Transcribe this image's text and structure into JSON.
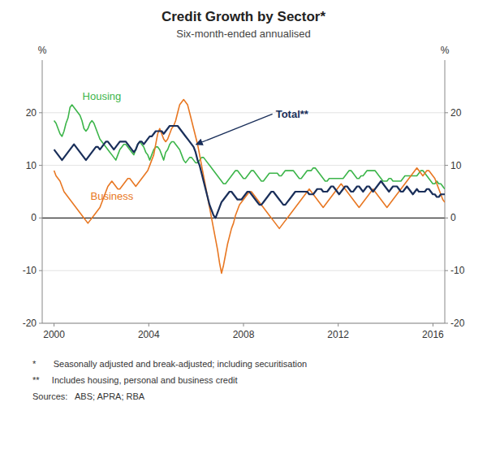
{
  "chart_data": {
    "type": "line",
    "title": "Credit Growth by Sector*",
    "subtitle": "Six-month-ended annualised",
    "ylabel": "%",
    "y2label": "%",
    "xlim": [
      1999.5,
      2016.5
    ],
    "xticks": [
      2000,
      2004,
      2008,
      2012,
      2016
    ],
    "ylim": [
      -20,
      30
    ],
    "yticks": [
      -20,
      -10,
      0,
      10,
      20
    ],
    "y2lim": [
      -20,
      30
    ],
    "y2ticks": [
      -20,
      -10,
      0,
      10,
      20
    ],
    "grid": true,
    "footnotes": [
      "*       Seasonally adjusted and break-adjusted; including securitisation",
      "**     Includes housing, personal and business credit",
      "Sources:   ABS; APRA; RBA"
    ],
    "x": [
      2000,
      2000.0842,
      2000.1684,
      2000.2526,
      2000.3367,
      2000.4209,
      2000.5051,
      2000.5893,
      2000.6735,
      2000.7577,
      2000.8418,
      2000.926,
      2001.0102,
      2001.0944,
      2001.1786,
      2001.2628,
      2001.3469,
      2001.4311,
      2001.5153,
      2001.5995,
      2001.6837,
      2001.7679,
      2001.852,
      2001.9362,
      2002.0204,
      2002.1046,
      2002.1888,
      2002.273,
      2002.3571,
      2002.4413,
      2002.5255,
      2002.6097,
      2002.6939,
      2002.7781,
      2002.8622,
      2002.9464,
      2003.0306,
      2003.1148,
      2003.199,
      2003.2832,
      2003.3673,
      2003.4515,
      2003.5357,
      2003.6199,
      2003.7041,
      2003.7883,
      2003.8724,
      2003.9566,
      2004.0408,
      2004.125,
      2004.2092,
      2004.2934,
      2004.3776,
      2004.4617,
      2004.5459,
      2004.6301,
      2004.7143,
      2004.7985,
      2004.8827,
      2004.9668,
      2005.051,
      2005.1352,
      2005.2194,
      2005.3036,
      2005.3878,
      2005.4719,
      2005.5561,
      2005.6403,
      2005.7245,
      2005.8087,
      2005.8929,
      2005.977,
      2006.0612,
      2006.1454,
      2006.2296,
      2006.3138,
      2006.398,
      2006.4821,
      2006.5663,
      2006.6505,
      2006.7347,
      2006.8189,
      2006.9031,
      2006.9872,
      2007.0714,
      2007.1556,
      2007.2398,
      2007.324,
      2007.4082,
      2007.4923,
      2007.5765,
      2007.6607,
      2007.7449,
      2007.8291,
      2007.9133,
      2007.9974,
      2008.0816,
      2008.1658,
      2008.25,
      2008.3342,
      2008.4184,
      2008.5026,
      2008.5867,
      2008.6709,
      2008.7551,
      2008.8393,
      2008.9235,
      2009.0077,
      2009.0918,
      2009.176,
      2009.2602,
      2009.3444,
      2009.4286,
      2009.5128,
      2009.5969,
      2009.6811,
      2009.7653,
      2009.8495,
      2009.9337,
      2010.0179,
      2010.102,
      2010.1862,
      2010.2704,
      2010.3546,
      2010.4388,
      2010.523,
      2010.6071,
      2010.6913,
      2010.7755,
      2010.8597,
      2010.9439,
      2011.0281,
      2011.1122,
      2011.1964,
      2011.2806,
      2011.3648,
      2011.449,
      2011.5332,
      2011.6173,
      2011.7015,
      2011.7857,
      2011.8699,
      2011.9541,
      2012.0383,
      2012.1224,
      2012.2066,
      2012.2908,
      2012.375,
      2012.4592,
      2012.5434,
      2012.6276,
      2012.7117,
      2012.7959,
      2012.8801,
      2012.9643,
      2013.0485,
      2013.1327,
      2013.2168,
      2013.301,
      2013.3852,
      2013.4694,
      2013.5536,
      2013.6378,
      2013.7219,
      2013.8061,
      2013.8903,
      2013.9745,
      2014.0587,
      2014.1429,
      2014.227,
      2014.3112,
      2014.3954,
      2014.4796,
      2014.5638,
      2014.648,
      2014.7321,
      2014.8163,
      2014.9005,
      2014.9847,
      2015.0689,
      2015.1531,
      2015.2372,
      2015.3214,
      2015.4056,
      2015.4898,
      2015.574,
      2015.6582,
      2015.7423,
      2015.8265,
      2015.9107,
      2015.9949,
      2016.0791,
      2016.1633,
      2016.2474,
      2016.3316,
      2016.4158,
      2016.5
    ],
    "series": [
      {
        "name": "Housing",
        "color": "#3cb54a",
        "values": [
          18.5,
          18.0,
          17.0,
          16.0,
          15.5,
          16.5,
          18.0,
          19.0,
          21.0,
          21.5,
          21.0,
          20.5,
          20.0,
          19.5,
          18.5,
          17.0,
          16.5,
          17.0,
          18.0,
          18.5,
          18.0,
          17.0,
          16.0,
          15.0,
          14.5,
          14.0,
          13.5,
          13.0,
          12.5,
          12.0,
          11.5,
          11.0,
          12.0,
          13.0,
          13.5,
          14.0,
          14.0,
          13.5,
          13.0,
          12.5,
          12.0,
          13.0,
          14.0,
          14.5,
          14.0,
          13.5,
          12.5,
          12.0,
          11.0,
          12.0,
          13.0,
          13.5,
          13.5,
          13.0,
          12.0,
          11.0,
          12.5,
          13.0,
          14.0,
          14.5,
          14.5,
          14.0,
          13.5,
          13.0,
          12.0,
          11.0,
          10.5,
          11.0,
          11.5,
          11.5,
          11.0,
          10.5,
          10.5,
          11.0,
          11.5,
          11.5,
          11.0,
          10.5,
          10.0,
          9.5,
          9.0,
          8.5,
          8.0,
          7.5,
          7.0,
          6.5,
          6.5,
          7.0,
          7.5,
          8.0,
          8.5,
          9.0,
          9.0,
          8.5,
          8.0,
          7.5,
          7.5,
          8.0,
          8.5,
          9.0,
          9.0,
          8.5,
          8.0,
          7.5,
          7.0,
          7.0,
          7.5,
          8.0,
          8.5,
          8.5,
          8.5,
          8.5,
          8.5,
          8.0,
          8.0,
          8.5,
          9.0,
          9.0,
          9.0,
          9.0,
          9.0,
          8.5,
          8.0,
          7.5,
          7.5,
          8.0,
          8.5,
          9.0,
          9.0,
          9.0,
          9.5,
          9.5,
          9.0,
          8.5,
          8.0,
          7.5,
          7.0,
          7.0,
          7.5,
          7.5,
          7.5,
          7.5,
          7.5,
          7.5,
          7.5,
          7.5,
          8.0,
          8.5,
          9.0,
          9.0,
          8.5,
          8.0,
          7.5,
          7.5,
          8.0,
          8.0,
          8.5,
          9.0,
          9.0,
          9.0,
          9.0,
          9.0,
          8.5,
          8.0,
          7.5,
          7.0,
          7.0,
          7.0,
          7.5,
          7.5,
          7.0,
          7.0,
          7.0,
          7.0,
          7.0,
          7.5,
          8.0,
          8.0,
          8.0,
          8.0,
          8.0,
          8.0,
          8.0,
          8.5,
          9.0,
          9.0,
          8.5,
          8.0,
          7.5,
          7.0,
          6.5,
          6.5,
          7.0,
          6.5,
          6.5,
          6.0,
          5.5
        ]
      },
      {
        "name": "Business",
        "color": "#e87722",
        "values": [
          9.0,
          8.0,
          7.5,
          7.0,
          6.0,
          5.0,
          4.5,
          4.0,
          3.5,
          3.0,
          2.5,
          2.0,
          1.5,
          1.0,
          0.5,
          0.0,
          -0.5,
          -1.0,
          -0.5,
          0.0,
          0.5,
          1.0,
          1.5,
          2.0,
          3.0,
          4.0,
          5.0,
          6.0,
          6.5,
          7.0,
          6.5,
          6.0,
          5.5,
          5.5,
          6.0,
          6.5,
          7.0,
          7.5,
          7.5,
          7.0,
          6.5,
          6.0,
          6.5,
          7.0,
          7.5,
          8.0,
          8.5,
          9.0,
          10.0,
          11.0,
          12.0,
          14.0,
          16.0,
          17.0,
          16.0,
          15.0,
          14.5,
          15.0,
          16.0,
          17.0,
          17.5,
          18.5,
          20.0,
          21.5,
          22.0,
          22.5,
          22.0,
          21.5,
          20.0,
          18.5,
          17.0,
          15.5,
          14.0,
          12.0,
          10.0,
          8.0,
          6.0,
          4.0,
          2.0,
          0.0,
          -2.0,
          -4.0,
          -6.0,
          -8.5,
          -10.5,
          -9.0,
          -7.0,
          -5.0,
          -3.5,
          -2.0,
          -1.0,
          0.5,
          1.5,
          2.5,
          3.0,
          3.5,
          4.0,
          4.5,
          5.0,
          5.0,
          4.5,
          4.0,
          3.5,
          3.0,
          2.5,
          2.0,
          1.5,
          1.0,
          0.5,
          0.0,
          -0.5,
          -1.0,
          -1.5,
          -2.0,
          -1.5,
          -1.0,
          -0.5,
          0.0,
          0.5,
          1.0,
          1.5,
          2.0,
          2.5,
          3.0,
          3.5,
          4.0,
          4.5,
          5.0,
          5.5,
          5.0,
          4.5,
          4.0,
          3.5,
          3.0,
          2.5,
          2.0,
          2.5,
          3.0,
          3.5,
          4.0,
          4.5,
          5.0,
          5.5,
          6.0,
          6.5,
          6.0,
          5.5,
          5.0,
          4.5,
          4.0,
          3.5,
          3.0,
          2.5,
          2.0,
          2.5,
          3.0,
          3.5,
          4.0,
          4.5,
          5.0,
          5.5,
          5.0,
          4.5,
          4.0,
          3.5,
          3.0,
          2.5,
          2.0,
          2.5,
          3.0,
          3.5,
          4.0,
          4.5,
          5.0,
          5.5,
          6.0,
          6.5,
          7.0,
          7.5,
          8.0,
          8.5,
          9.0,
          9.5,
          9.0,
          8.5,
          8.0,
          8.5,
          9.0,
          9.0,
          8.5,
          8.0,
          7.5,
          6.5,
          5.5,
          4.5,
          3.5,
          3.0
        ]
      },
      {
        "name": "Total**",
        "color": "#1a2f5a",
        "values": [
          13.0,
          12.5,
          12.0,
          11.5,
          11.0,
          11.5,
          12.0,
          12.5,
          13.0,
          13.5,
          14.0,
          13.5,
          13.0,
          12.5,
          12.0,
          11.5,
          11.0,
          11.5,
          12.0,
          12.5,
          13.0,
          13.5,
          13.5,
          13.0,
          13.5,
          14.0,
          14.5,
          14.5,
          14.0,
          13.5,
          13.0,
          13.5,
          14.0,
          14.5,
          14.5,
          14.5,
          14.5,
          14.0,
          13.5,
          13.0,
          12.5,
          13.0,
          14.0,
          14.5,
          14.5,
          14.0,
          14.5,
          15.0,
          15.5,
          15.5,
          16.0,
          16.5,
          16.5,
          16.5,
          16.5,
          16.0,
          16.5,
          17.0,
          17.5,
          17.5,
          17.5,
          17.5,
          17.5,
          17.0,
          16.5,
          16.0,
          15.5,
          15.0,
          14.5,
          14.0,
          13.5,
          12.5,
          11.0,
          10.0,
          8.5,
          7.0,
          5.5,
          4.0,
          2.5,
          1.5,
          0.5,
          0.0,
          1.0,
          2.0,
          3.0,
          3.5,
          4.0,
          4.5,
          5.0,
          5.0,
          4.5,
          4.0,
          3.5,
          3.5,
          3.5,
          4.0,
          4.5,
          5.0,
          5.0,
          4.5,
          4.0,
          3.5,
          3.0,
          2.5,
          2.5,
          3.0,
          3.5,
          4.0,
          4.5,
          5.0,
          5.0,
          4.5,
          4.0,
          3.5,
          3.0,
          2.5,
          2.5,
          3.0,
          3.5,
          4.0,
          4.5,
          5.0,
          5.0,
          5.0,
          5.0,
          5.0,
          5.0,
          5.0,
          4.5,
          4.5,
          4.5,
          5.0,
          5.5,
          5.5,
          5.5,
          5.0,
          5.0,
          5.0,
          5.5,
          6.0,
          6.0,
          5.5,
          5.0,
          4.5,
          5.0,
          5.5,
          6.0,
          6.0,
          5.5,
          5.0,
          5.0,
          5.5,
          6.0,
          6.0,
          5.5,
          5.0,
          5.5,
          6.0,
          6.0,
          5.5,
          5.0,
          5.5,
          6.0,
          6.5,
          7.0,
          6.5,
          6.0,
          5.5,
          5.0,
          5.5,
          6.0,
          6.0,
          6.0,
          5.5,
          5.0,
          5.0,
          5.5,
          6.0,
          5.5,
          5.0,
          4.5,
          5.0,
          5.5,
          5.0,
          5.0,
          5.0,
          5.0,
          5.5,
          5.5,
          5.0,
          4.5,
          4.5,
          4.0,
          4.0,
          4.5,
          4.5,
          4.5
        ]
      }
    ]
  }
}
